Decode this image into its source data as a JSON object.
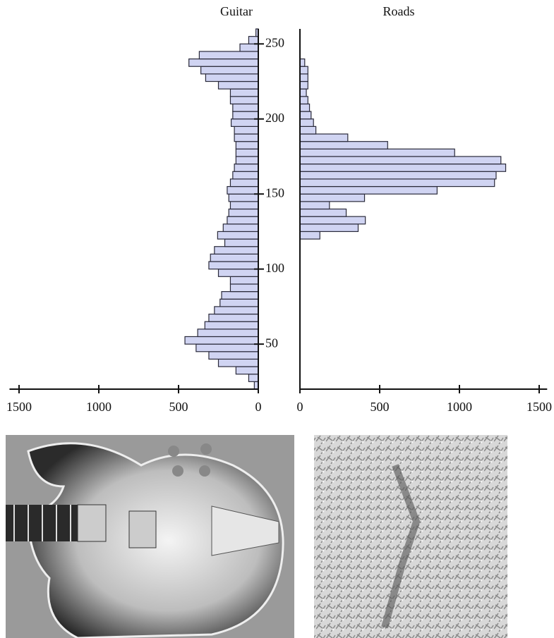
{
  "chart_data": [
    {
      "type": "histogram",
      "orientation": "horizontal",
      "title": "Guitar",
      "x_reversed": true,
      "bins": [
        20,
        25,
        30,
        35,
        40,
        45,
        50,
        55,
        60,
        65,
        70,
        75,
        80,
        85,
        90,
        95,
        100,
        105,
        110,
        115,
        120,
        125,
        130,
        135,
        140,
        145,
        150,
        155,
        160,
        165,
        170,
        175,
        180,
        185,
        190,
        195,
        200,
        205,
        210,
        215,
        220,
        225,
        230,
        235,
        240,
        245,
        250,
        255,
        260
      ],
      "values": [
        25,
        60,
        140,
        250,
        310,
        390,
        460,
        380,
        335,
        310,
        275,
        240,
        230,
        175,
        175,
        250,
        310,
        300,
        275,
        210,
        255,
        220,
        195,
        185,
        175,
        185,
        195,
        175,
        160,
        150,
        140,
        140,
        140,
        150,
        150,
        170,
        160,
        160,
        175,
        175,
        250,
        330,
        360,
        435,
        370,
        115,
        60,
        15
      ],
      "color": "#d0d4f2",
      "edgecolor": "#2a2a3a",
      "xlim": [
        0,
        1560
      ],
      "xticks": [
        0,
        500,
        1000,
        1500
      ],
      "ylim": [
        20,
        260
      ],
      "yticks": [
        50,
        100,
        150,
        200,
        250
      ]
    },
    {
      "type": "histogram",
      "orientation": "horizontal",
      "title": "Roads",
      "x_reversed": false,
      "bins": [
        20,
        25,
        30,
        35,
        40,
        45,
        50,
        55,
        60,
        65,
        70,
        75,
        80,
        85,
        90,
        95,
        100,
        105,
        110,
        115,
        120,
        125,
        130,
        135,
        140,
        145,
        150,
        155,
        160,
        165,
        170,
        175,
        180,
        185,
        190,
        195,
        200,
        205,
        210,
        215,
        220,
        225,
        230,
        235,
        240,
        245,
        250,
        255,
        260
      ],
      "values": [
        0,
        0,
        0,
        0,
        0,
        0,
        0,
        0,
        0,
        0,
        0,
        0,
        0,
        0,
        0,
        0,
        0,
        0,
        0,
        0,
        125,
        365,
        410,
        290,
        185,
        405,
        860,
        1220,
        1230,
        1290,
        1260,
        970,
        550,
        300,
        100,
        85,
        70,
        60,
        50,
        40,
        50,
        50,
        50,
        30,
        0,
        0,
        0,
        0
      ],
      "color": "#d0d4f2",
      "edgecolor": "#2a2a3a",
      "xlim": [
        0,
        1550
      ],
      "xticks": [
        0,
        500,
        1000,
        1500
      ],
      "ylim": [
        20,
        260
      ]
    }
  ]
}
